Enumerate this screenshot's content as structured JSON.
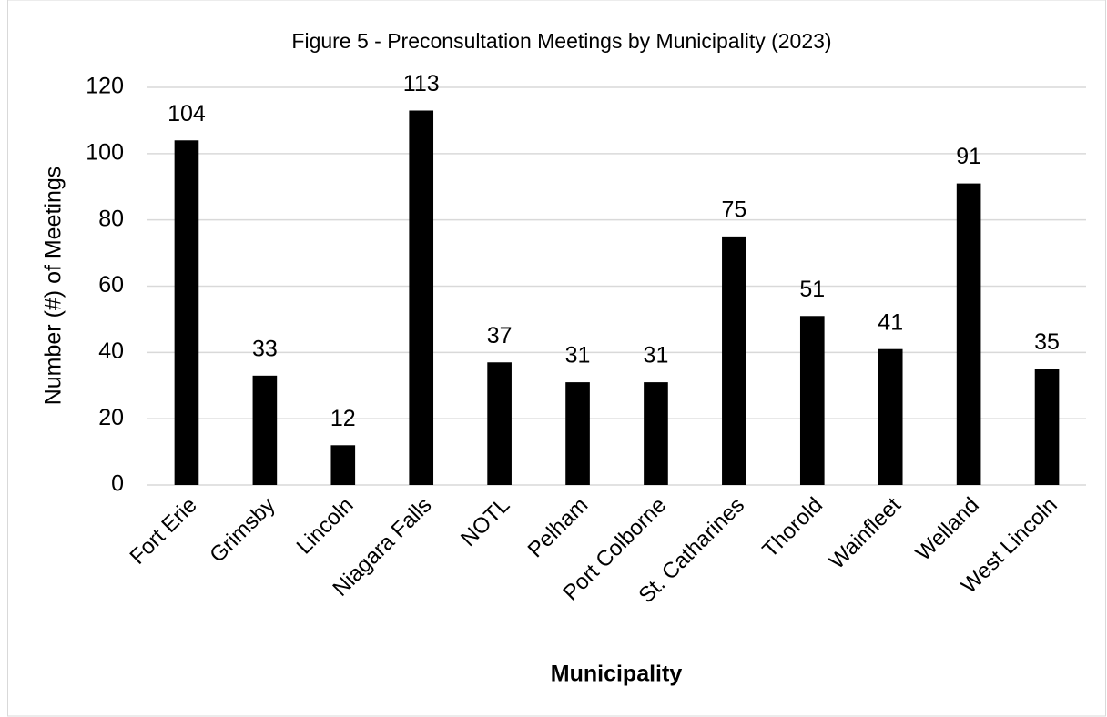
{
  "chart_data": {
    "type": "bar",
    "title": "Figure 5 - Preconsultation Meetings by Municipality (2023)",
    "x_label": "Municipality",
    "y_label": "Number (#) of Meetings",
    "categories": [
      "Fort Erie",
      "Grimsby",
      "Lincoln",
      "Niagara Falls",
      "NOTL",
      "Pelham",
      "Port Colborne",
      "St. Catharines",
      "Thorold",
      "Wainfleet",
      "Welland",
      "West Lincoln"
    ],
    "values": [
      104,
      33,
      12,
      113,
      37,
      31,
      31,
      75,
      51,
      41,
      91,
      35
    ],
    "color": "#000000",
    "ylim": [
      0,
      120
    ],
    "yticks": [
      0,
      20,
      40,
      60,
      80,
      100,
      120
    ],
    "grid": true
  }
}
